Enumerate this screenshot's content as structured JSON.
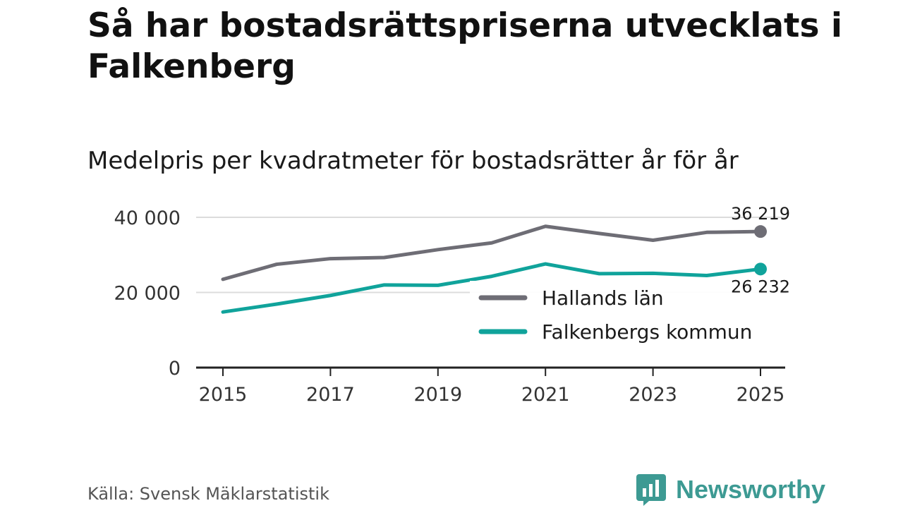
{
  "title": "Så har bostadsrättspriserna utvecklats i Falkenberg",
  "subtitle": "Medelpris per kvadratmeter för bostadsrätter år för år",
  "source": "Källa: Svensk Mäklarstatistik",
  "brand": {
    "name": "Newsworthy",
    "icon": "newsworthy-logo-icon",
    "color": "#3d9a93"
  },
  "chart_data": {
    "type": "line",
    "title": "Så har bostadsrättspriserna utvecklats i Falkenberg",
    "subtitle": "Medelpris per kvadratmeter för bostadsrätter år för år",
    "xlabel": "",
    "ylabel": "",
    "x": [
      2015,
      2016,
      2017,
      2018,
      2019,
      2020,
      2021,
      2022,
      2023,
      2024,
      2025
    ],
    "x_ticks": [
      "2015",
      "2017",
      "2019",
      "2021",
      "2023",
      "2025"
    ],
    "y_ticks": [
      {
        "value": 0,
        "label": "0"
      },
      {
        "value": 20000,
        "label": "20 000"
      },
      {
        "value": 40000,
        "label": "40 000"
      }
    ],
    "ylim": [
      0,
      40000
    ],
    "xlim": [
      2015,
      2025
    ],
    "grid": true,
    "legend_position": "bottom-right",
    "series": [
      {
        "name": "Hallands län",
        "color": "#6e6d75",
        "values": [
          23500,
          27500,
          29000,
          29300,
          31400,
          33200,
          37600,
          35700,
          33900,
          36000,
          36219
        ],
        "end_label": "36 219"
      },
      {
        "name": "Falkenbergs kommun",
        "color": "#10a39b",
        "values": [
          14800,
          16900,
          19200,
          22000,
          21900,
          24300,
          27600,
          25000,
          25100,
          24500,
          26232
        ],
        "end_label": "26 232"
      }
    ]
  }
}
